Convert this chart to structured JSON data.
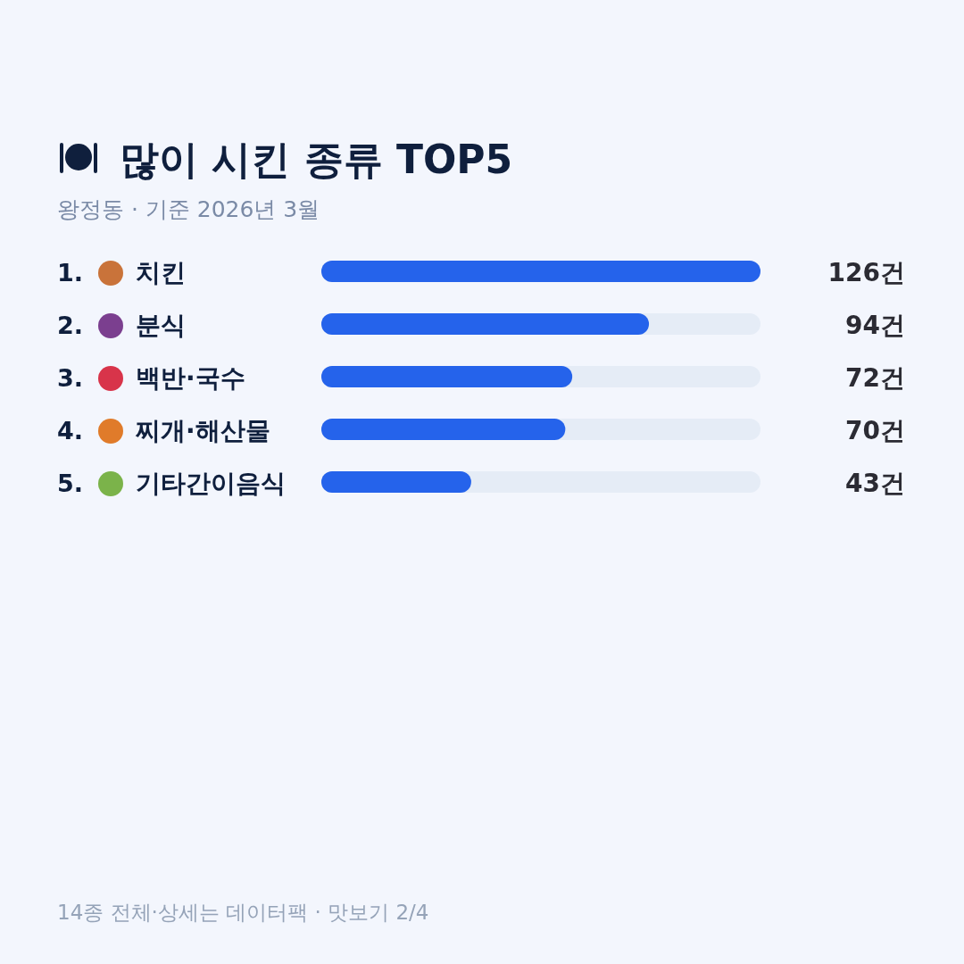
{
  "chart_data": {
    "type": "bar",
    "orientation": "horizontal",
    "title": "많이 시킨 종류 TOP5",
    "subtitle": "왕정동 · 기준 2026년 3월",
    "categories": [
      "1. 치킨",
      "2. 분식",
      "3. 백반·국수",
      "4. 찌개·해산물",
      "5. 기타간이음식"
    ],
    "values": [
      126,
      94,
      72,
      70,
      43
    ],
    "color": "#2563eb",
    "value_labels": [
      "126건",
      "94건",
      "72건",
      "70건",
      "43건"
    ],
    "xlim": [
      0,
      126
    ],
    "annotations": [
      "14종 전체·상세는 데이터팩 · 맛보기 2/4"
    ]
  }
}
